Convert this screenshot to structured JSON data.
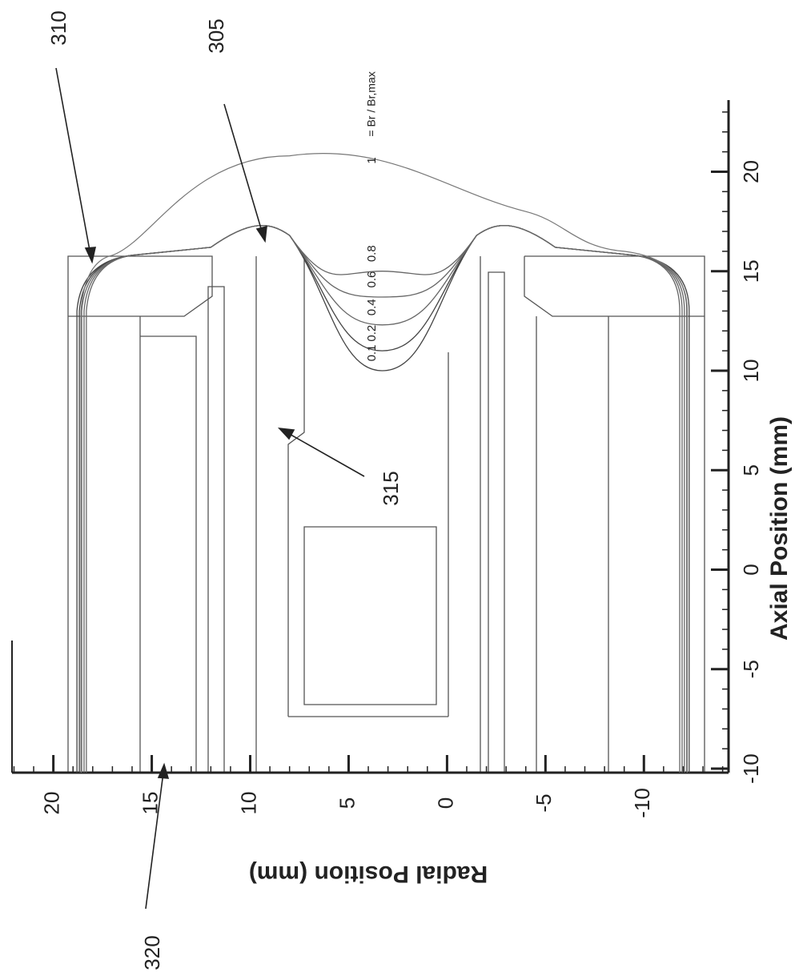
{
  "chart_data": {
    "type": "contour",
    "xlabel": "Axial Position (mm)",
    "ylabel": "Radial Position (mm)",
    "xlim": [
      -10.2,
      23.6
    ],
    "xticks": [
      -10,
      -5,
      0,
      5,
      10,
      15,
      20
    ],
    "ylim": [
      -14.3,
      22.1
    ],
    "yticks": [
      -10,
      -5,
      0,
      5,
      10,
      15,
      20
    ],
    "level_note": "= Br / Br,max",
    "contours": [
      {
        "level": 0.1,
        "min_axial": 10.0
      },
      {
        "level": 0.2,
        "min_axial": 11.0
      },
      {
        "level": 0.4,
        "min_axial": 12.3
      },
      {
        "level": 0.6,
        "min_axial": 13.7
      },
      {
        "level": 0.8,
        "min_axial": 15.0
      },
      {
        "level": 1.0,
        "max_axial": 20.8
      }
    ],
    "annotations": [
      "310",
      "305",
      "315",
      "320"
    ]
  }
}
